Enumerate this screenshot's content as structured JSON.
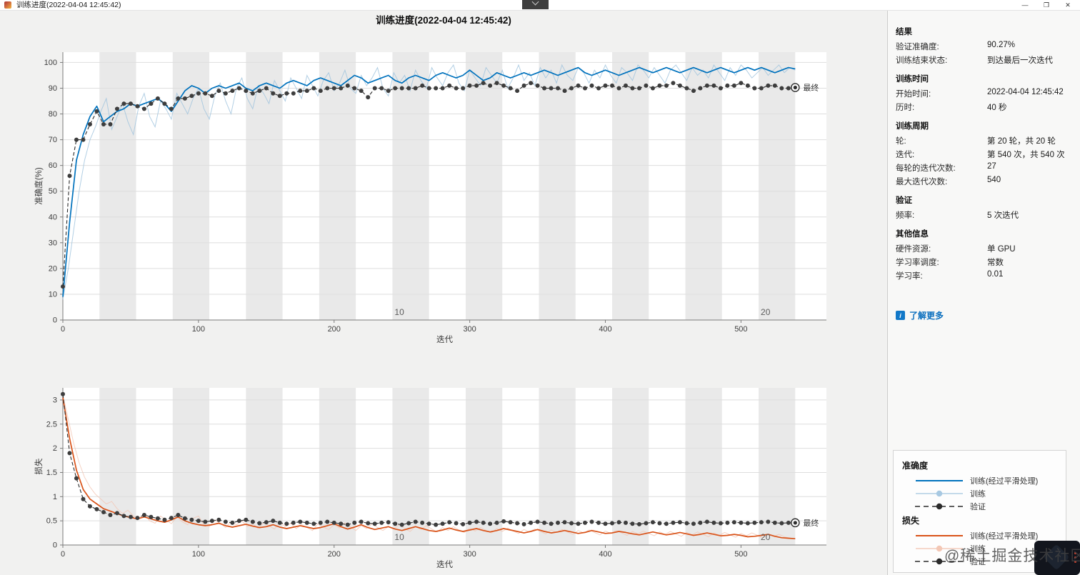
{
  "window": {
    "title": "训练进度(2022-04-04 12:45:42)",
    "controls": {
      "minimize": "—",
      "restore": "❐",
      "close": "✕"
    }
  },
  "figure": {
    "title": "训练进度(2022-04-04 12:45:42)"
  },
  "colors": {
    "train_smooth_acc": "#0072bd",
    "train_raw_acc": "#9fc3dd",
    "train_smooth_loss": "#d95319",
    "train_raw_loss": "#f3c7b5",
    "validation": "#2b2b2b",
    "epoch_band": "#e9e9e9",
    "grid": "#dedede",
    "axis": "#7a7a7a",
    "link": "#0b6fbe"
  },
  "info_panel": {
    "sections": [
      {
        "header": "结果",
        "rows": [
          {
            "label": "验证准确度:",
            "value": "90.27%"
          },
          {
            "label": "训练结束状态:",
            "value": "到达最后一次迭代"
          }
        ]
      },
      {
        "header": "训练时间",
        "rows": [
          {
            "label": "开始时间:",
            "value": "2022-04-04 12:45:42"
          },
          {
            "label": "历时:",
            "value": "40 秒"
          }
        ]
      },
      {
        "header": "训练周期",
        "rows": [
          {
            "label": "轮:",
            "value": "第 20 轮，共 20 轮"
          },
          {
            "label": "迭代:",
            "value": "第 540 次，共 540 次"
          },
          {
            "label": "每轮的迭代次数:",
            "value": "27"
          },
          {
            "label": "最大迭代次数:",
            "value": "540"
          }
        ]
      },
      {
        "header": "验证",
        "rows": [
          {
            "label": "频率:",
            "value": "5 次迭代"
          }
        ]
      },
      {
        "header": "其他信息",
        "rows": [
          {
            "label": "硬件资源:",
            "value": "单 GPU"
          },
          {
            "label": "学习率调度:",
            "value": "常数"
          },
          {
            "label": "学习率:",
            "value": "0.01"
          }
        ]
      }
    ],
    "learn_more": {
      "icon": "i",
      "label": "了解更多"
    }
  },
  "legend": {
    "groups": [
      {
        "title": "准确度",
        "items": [
          {
            "label": "训练(经过平滑处理)",
            "style": "smooth",
            "color": "#0072bd"
          },
          {
            "label": "训练",
            "style": "raw",
            "color": "#a8c9e2"
          },
          {
            "label": "验证",
            "style": "validation",
            "color": "#2b2b2b"
          }
        ]
      },
      {
        "title": "损失",
        "items": [
          {
            "label": "训练(经过平滑处理)",
            "style": "smooth",
            "color": "#d95319"
          },
          {
            "label": "训练",
            "style": "raw",
            "color": "#f3c7b5"
          },
          {
            "label": "验证",
            "style": "validation",
            "color": "#2b2b2b"
          }
        ]
      }
    ]
  },
  "watermark": {
    "text": "@稀土掘金技术社区"
  },
  "chart_data": [
    {
      "type": "line",
      "title": "",
      "xlabel": "迭代",
      "ylabel": "准确度(%)",
      "xlim": [
        0,
        563
      ],
      "ylim": [
        0,
        104
      ],
      "xticks": [
        0,
        100,
        200,
        300,
        400,
        500
      ],
      "yticks": [
        0,
        10,
        20,
        30,
        40,
        50,
        60,
        70,
        80,
        90,
        100
      ],
      "grid": "horizontal",
      "epochs_total": 20,
      "iterations_per_epoch": 27,
      "epoch_labels": [
        {
          "label": "10",
          "iteration": 243
        },
        {
          "label": "20",
          "iteration": 513
        }
      ],
      "final_label": "最终",
      "final_point": {
        "x": 540,
        "y": 90.27
      },
      "series": [
        {
          "name": "训练",
          "style": "raw",
          "color": "#9fc3dd",
          "x0": 0,
          "dx": 4,
          "values": [
            8,
            20,
            35,
            50,
            62,
            70,
            75,
            81,
            86,
            74,
            79,
            84,
            77,
            72,
            83,
            88,
            79,
            75,
            85,
            82,
            78,
            88,
            84,
            80,
            86,
            90,
            82,
            78,
            87,
            92,
            85,
            80,
            90,
            94,
            86,
            82,
            91,
            88,
            84,
            93,
            89,
            85,
            94,
            90,
            86,
            95,
            91,
            87,
            93,
            96,
            89,
            92,
            97,
            90,
            88,
            95,
            91,
            94,
            98,
            90,
            87,
            96,
            92,
            95,
            89,
            97,
            93,
            90,
            98,
            94,
            91,
            96,
            99,
            92,
            89,
            97,
            94,
            91,
            98,
            95,
            92,
            97,
            90,
            94,
            99,
            93,
            96,
            91,
            98,
            94,
            97,
            92,
            99,
            95,
            93,
            98,
            96,
            92,
            97,
            94,
            99,
            95,
            92,
            98,
            96,
            93,
            99,
            97,
            94,
            98,
            95,
            92,
            97,
            99,
            96,
            93,
            98,
            95,
            97,
            94,
            99,
            96,
            93,
            98,
            95,
            99,
            97,
            94,
            96,
            98,
            95,
            97,
            99,
            96,
            98,
            97
          ]
        },
        {
          "name": "训练(经过平滑处理)",
          "style": "smooth",
          "color": "#0072bd",
          "x0": 0,
          "dx": 5,
          "values": [
            9,
            38,
            62,
            72,
            79,
            83,
            77,
            79,
            81,
            82,
            84,
            83,
            84,
            85,
            86,
            84,
            81,
            85,
            89,
            91,
            90,
            88,
            90,
            91,
            90,
            91,
            92,
            90,
            89,
            91,
            92,
            91,
            90,
            92,
            93,
            92,
            91,
            93,
            94,
            93,
            92,
            91,
            93,
            95,
            94,
            92,
            93,
            94,
            95,
            93,
            92,
            94,
            95,
            94,
            93,
            95,
            96,
            95,
            94,
            95,
            97,
            95,
            93,
            94,
            96,
            95,
            94,
            95,
            96,
            95,
            96,
            97,
            96,
            95,
            96,
            97,
            98,
            96,
            95,
            96,
            97,
            96,
            95,
            96,
            97,
            98,
            97,
            96,
            97,
            98,
            97,
            96,
            97,
            98,
            97,
            96,
            97,
            98,
            97,
            96,
            97,
            98,
            97,
            98,
            97,
            96,
            97,
            98,
            97.5
          ]
        },
        {
          "name": "验证",
          "style": "validation",
          "color": "#2b2b2b",
          "x0": 0,
          "dx": 5,
          "values": [
            13,
            56,
            70,
            70,
            76,
            81,
            76,
            76,
            82,
            84,
            84,
            83,
            82,
            84,
            86,
            84,
            82,
            86,
            86,
            87,
            88,
            88,
            87,
            89,
            88,
            89,
            90,
            89,
            88,
            89,
            90,
            88,
            87,
            88,
            88,
            89,
            89,
            90,
            89,
            90,
            90,
            90,
            91,
            90,
            89,
            86.5,
            90,
            90,
            89,
            90,
            90,
            90,
            90,
            91,
            90,
            90,
            90,
            91,
            90,
            90,
            91,
            91,
            92,
            91,
            92,
            91,
            90,
            89,
            91,
            92,
            91,
            90,
            90,
            90,
            89,
            90,
            91,
            90,
            91,
            90,
            91,
            91,
            90,
            91,
            90,
            90,
            91,
            90,
            91,
            91,
            92,
            91,
            90,
            89,
            90,
            91,
            91,
            90,
            91,
            91,
            92,
            91,
            90,
            90,
            91,
            91,
            90,
            90,
            90.27
          ]
        }
      ]
    },
    {
      "type": "line",
      "title": "",
      "xlabel": "迭代",
      "ylabel": "损失",
      "xlim": [
        0,
        563
      ],
      "ylim": [
        0,
        3.25
      ],
      "xticks": [
        0,
        100,
        200,
        300,
        400,
        500
      ],
      "yticks": [
        0,
        0.5,
        1,
        1.5,
        2,
        2.5,
        3
      ],
      "grid": "horizontal",
      "epochs_total": 20,
      "iterations_per_epoch": 27,
      "epoch_labels": [
        {
          "label": "10",
          "iteration": 243
        },
        {
          "label": "20",
          "iteration": 513
        }
      ],
      "final_label": "最终",
      "final_point": {
        "x": 540,
        "y": 0.46
      },
      "series": [
        {
          "name": "训练",
          "style": "raw",
          "color": "#f3c7b5",
          "x0": 0,
          "dx": 4,
          "values": [
            3.1,
            2.6,
            2.1,
            1.7,
            1.4,
            1.2,
            1.05,
            0.95,
            0.85,
            0.9,
            0.75,
            0.65,
            0.72,
            0.6,
            0.55,
            0.65,
            0.5,
            0.45,
            0.6,
            0.52,
            0.44,
            0.58,
            0.48,
            0.42,
            0.55,
            0.6,
            0.42,
            0.38,
            0.52,
            0.45,
            0.36,
            0.48,
            0.42,
            0.5,
            0.38,
            0.44,
            0.34,
            0.46,
            0.4,
            0.33,
            0.47,
            0.38,
            0.45,
            0.34,
            0.42,
            0.36,
            0.3,
            0.44,
            0.37,
            0.32,
            0.42,
            0.35,
            0.46,
            0.38,
            0.3,
            0.4,
            0.34,
            0.44,
            0.36,
            0.3,
            0.38,
            0.33,
            0.42,
            0.34,
            0.28,
            0.38,
            0.32,
            0.4,
            0.33,
            0.27,
            0.36,
            0.3,
            0.38,
            0.31,
            0.26,
            0.35,
            0.29,
            0.36,
            0.3,
            0.25,
            0.34,
            0.28,
            0.35,
            0.29,
            0.24,
            0.32,
            0.27,
            0.33,
            0.28,
            0.23,
            0.31,
            0.26,
            0.32,
            0.27,
            0.22,
            0.3,
            0.25,
            0.31,
            0.26,
            0.21,
            0.29,
            0.24,
            0.3,
            0.25,
            0.2,
            0.28,
            0.23,
            0.29,
            0.24,
            0.19,
            0.27,
            0.22,
            0.28,
            0.23,
            0.18,
            0.26,
            0.21,
            0.27,
            0.22,
            0.17,
            0.25,
            0.2,
            0.26,
            0.21,
            0.16,
            0.24,
            0.19,
            0.25,
            0.2,
            0.15,
            0.23,
            0.18,
            0.22,
            0.17,
            0.14,
            0.13
          ]
        },
        {
          "name": "训练(经过平滑处理)",
          "style": "smooth",
          "color": "#d95319",
          "x0": 0,
          "dx": 5,
          "values": [
            3.05,
            2.2,
            1.55,
            1.15,
            0.95,
            0.85,
            0.75,
            0.7,
            0.65,
            0.6,
            0.57,
            0.54,
            0.58,
            0.54,
            0.5,
            0.47,
            0.52,
            0.58,
            0.5,
            0.45,
            0.42,
            0.4,
            0.42,
            0.45,
            0.4,
            0.37,
            0.4,
            0.43,
            0.39,
            0.36,
            0.38,
            0.42,
            0.37,
            0.34,
            0.37,
            0.4,
            0.37,
            0.34,
            0.36,
            0.4,
            0.44,
            0.38,
            0.33,
            0.37,
            0.42,
            0.36,
            0.32,
            0.35,
            0.38,
            0.33,
            0.3,
            0.34,
            0.38,
            0.34,
            0.3,
            0.28,
            0.31,
            0.35,
            0.31,
            0.28,
            0.31,
            0.34,
            0.3,
            0.27,
            0.3,
            0.34,
            0.31,
            0.28,
            0.25,
            0.28,
            0.32,
            0.28,
            0.25,
            0.27,
            0.3,
            0.27,
            0.24,
            0.26,
            0.3,
            0.27,
            0.24,
            0.25,
            0.28,
            0.26,
            0.23,
            0.21,
            0.24,
            0.27,
            0.24,
            0.21,
            0.23,
            0.26,
            0.23,
            0.2,
            0.22,
            0.25,
            0.22,
            0.19,
            0.2,
            0.22,
            0.2,
            0.17,
            0.18,
            0.2,
            0.22,
            0.18,
            0.15,
            0.14,
            0.13
          ]
        },
        {
          "name": "验证",
          "style": "validation",
          "color": "#2b2b2b",
          "x0": 0,
          "dx": 5,
          "values": [
            3.12,
            1.9,
            1.38,
            0.95,
            0.8,
            0.74,
            0.68,
            0.62,
            0.66,
            0.6,
            0.58,
            0.56,
            0.62,
            0.58,
            0.55,
            0.52,
            0.56,
            0.62,
            0.55,
            0.52,
            0.5,
            0.48,
            0.5,
            0.52,
            0.48,
            0.46,
            0.5,
            0.52,
            0.48,
            0.45,
            0.47,
            0.5,
            0.46,
            0.44,
            0.46,
            0.48,
            0.46,
            0.44,
            0.46,
            0.48,
            0.46,
            0.44,
            0.42,
            0.46,
            0.48,
            0.45,
            0.44,
            0.46,
            0.47,
            0.44,
            0.42,
            0.45,
            0.48,
            0.46,
            0.44,
            0.42,
            0.44,
            0.47,
            0.45,
            0.43,
            0.46,
            0.48,
            0.46,
            0.44,
            0.46,
            0.49,
            0.47,
            0.45,
            0.43,
            0.46,
            0.48,
            0.46,
            0.44,
            0.46,
            0.47,
            0.45,
            0.44,
            0.46,
            0.48,
            0.46,
            0.44,
            0.45,
            0.47,
            0.46,
            0.44,
            0.43,
            0.45,
            0.47,
            0.45,
            0.44,
            0.46,
            0.47,
            0.45,
            0.44,
            0.46,
            0.48,
            0.46,
            0.45,
            0.46,
            0.47,
            0.46,
            0.45,
            0.46,
            0.47,
            0.48,
            0.46,
            0.45,
            0.46,
            0.46
          ]
        }
      ]
    }
  ]
}
